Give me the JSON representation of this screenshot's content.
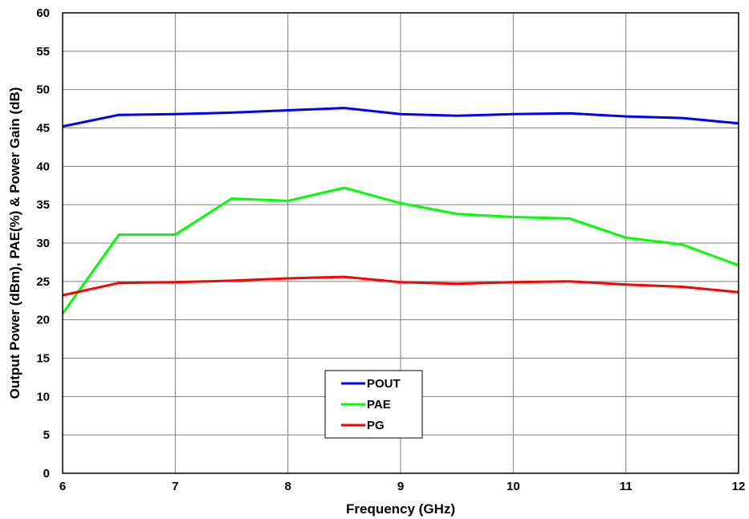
{
  "chart_data": {
    "type": "line",
    "title": "",
    "xlabel": "Frequency (GHz)",
    "ylabel": "Output Power (dBm), PAE(%) & Power Gain (dB)",
    "xlim": [
      6,
      12
    ],
    "ylim": [
      0,
      60
    ],
    "x_ticks": [
      "6",
      "7",
      "8",
      "9",
      "10",
      "11",
      "12"
    ],
    "y_ticks": [
      "0",
      "5",
      "10",
      "15",
      "20",
      "25",
      "30",
      "35",
      "40",
      "45",
      "50",
      "55",
      "60"
    ],
    "grid": true,
    "legend_position": "bottom-center",
    "x": [
      6,
      6.5,
      7,
      7.5,
      8,
      8.5,
      9,
      9.5,
      10,
      10.5,
      11,
      11.5,
      12
    ],
    "series": [
      {
        "name": "POUT",
        "color": "#0000ff",
        "values": [
          45.2,
          46.7,
          46.8,
          47.0,
          47.3,
          47.6,
          46.8,
          46.6,
          46.8,
          46.9,
          46.5,
          46.3,
          45.6
        ]
      },
      {
        "name": "PAE",
        "color": "#00ff00",
        "values": [
          20.8,
          31.1,
          31.1,
          35.8,
          35.5,
          37.2,
          35.2,
          33.8,
          33.4,
          33.2,
          30.7,
          29.8,
          27.1
        ]
      },
      {
        "name": "PG",
        "color": "#ff0000",
        "values": [
          23.2,
          24.8,
          24.9,
          25.1,
          25.4,
          25.6,
          24.9,
          24.7,
          24.9,
          25.0,
          24.6,
          24.3,
          23.6
        ]
      }
    ]
  }
}
